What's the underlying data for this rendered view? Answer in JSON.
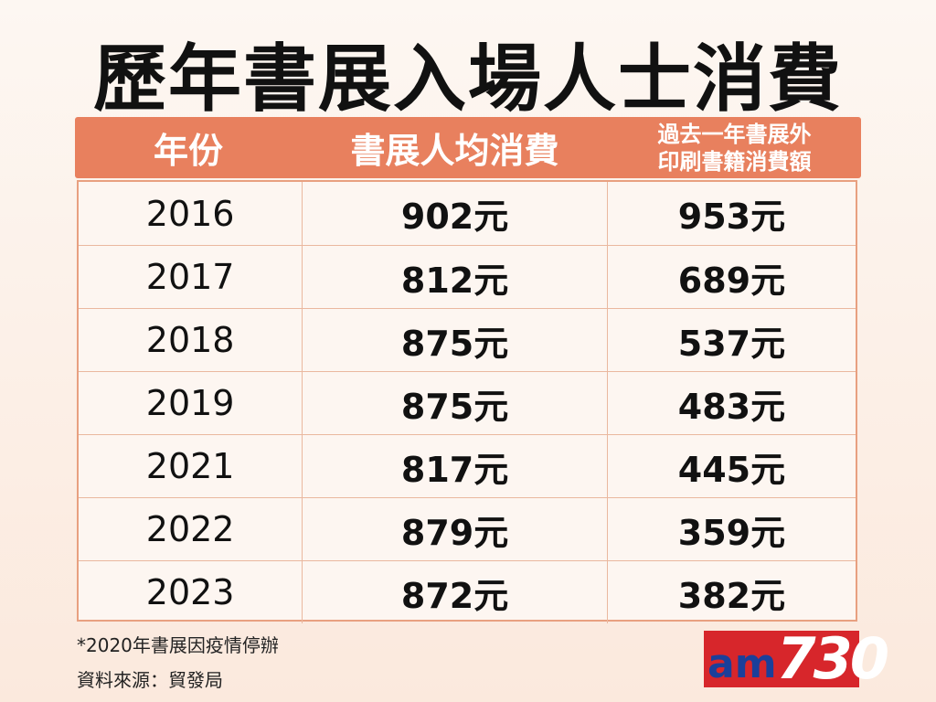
{
  "title": "歷年書展入場人士消費",
  "table": {
    "headers": [
      "年份",
      "書展人均消費",
      [
        "過去一年書展外",
        "印刷書籍消費額"
      ]
    ],
    "rows": [
      [
        "2016",
        "902元",
        "953元"
      ],
      [
        "2017",
        "812元",
        "689元"
      ],
      [
        "2018",
        "875元",
        "537元"
      ],
      [
        "2019",
        "875元",
        "483元"
      ],
      [
        "2021",
        "817元",
        "445元"
      ],
      [
        "2022",
        "879元",
        "359元"
      ],
      [
        "2023",
        "872元",
        "382元"
      ]
    ]
  },
  "footnotes": [
    "*2020年書展因疫情停辦",
    "資料來源：貿發局"
  ],
  "logo": {
    "prefix": "am",
    "number": "730"
  }
}
